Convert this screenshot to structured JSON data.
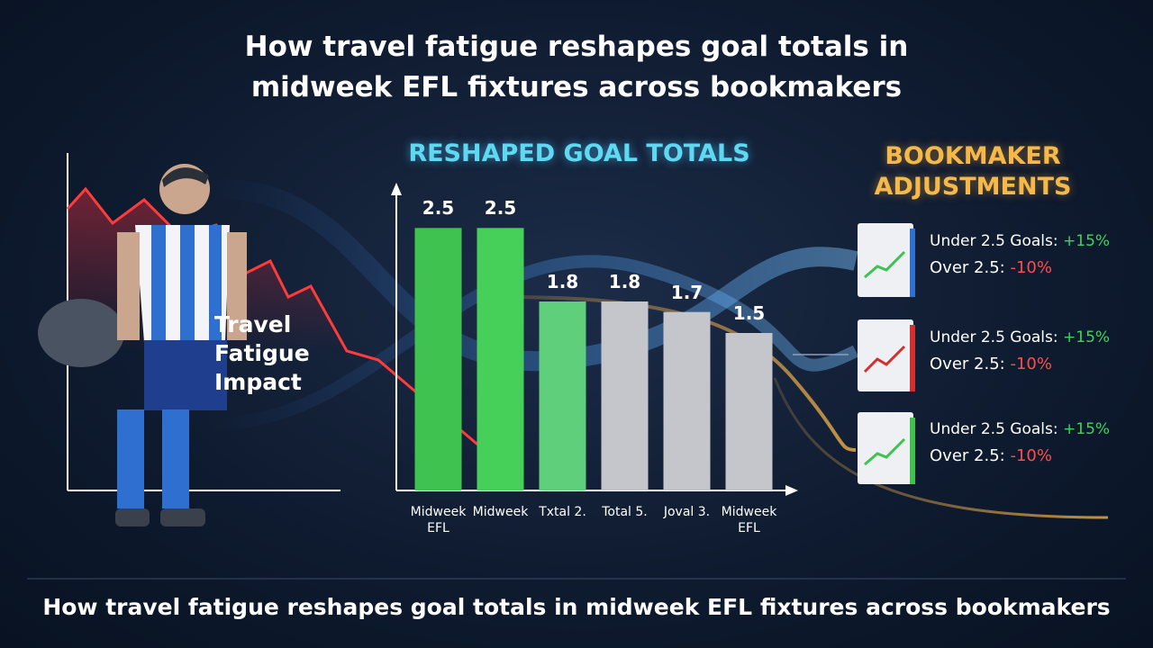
{
  "title": "How travel fatigue reshapes goal totals in midweek EFL fixtures across bookmakers",
  "left_panel": {
    "label": "Travel Fatigue Impact"
  },
  "chart_data": {
    "type": "bar",
    "title": "RESHAPED GOAL TOTALS",
    "categories": [
      "Midweek EFL",
      "Midweek",
      "Txtal 2.",
      "Total 5.",
      "Joval 3.",
      "Midweek EFL"
    ],
    "values": [
      2.5,
      2.5,
      1.8,
      1.8,
      1.7,
      1.5
    ],
    "colors": [
      "#3fc24f",
      "#46d05a",
      "#5fcf7c",
      "#c4c6cc",
      "#c4c6cc",
      "#c4c6cc"
    ],
    "ylim": [
      0,
      3
    ]
  },
  "bookmakers": {
    "title": "BOOKMAKER ADJUSTMENTS",
    "cards": [
      {
        "under_label": "Under 2.5 Goals:",
        "under_change": "+15%",
        "over_label": "Over 2.5:",
        "over_change": "-10%"
      },
      {
        "under_label": "Under 2.5 Goals:",
        "under_change": "+15%",
        "over_label": "Over 2.5:",
        "over_change": "-10%"
      },
      {
        "under_label": "Under 2.5 Goals:",
        "under_change": "+15%",
        "over_label": "Over 2.5:",
        "over_change": "-10%"
      }
    ]
  },
  "footer": "How travel fatigue reshapes goal totals in midweek EFL fixtures across bookmakers"
}
